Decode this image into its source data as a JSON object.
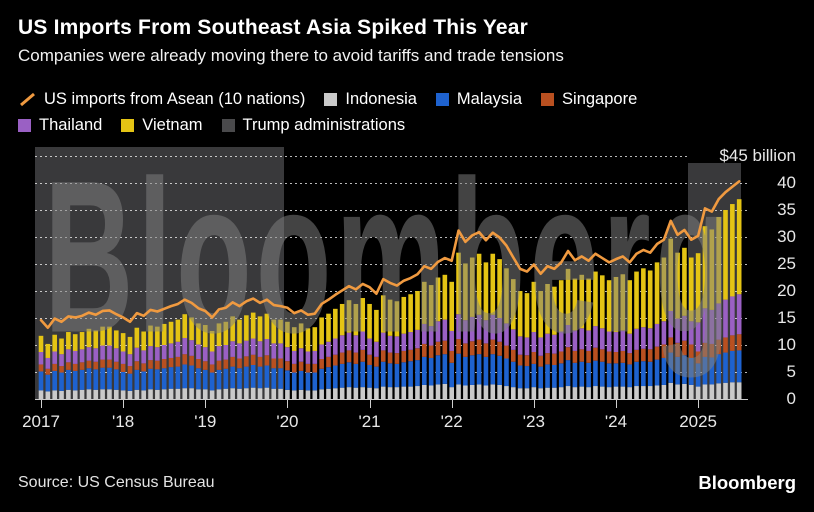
{
  "header": {
    "title": "US Imports From Southeast Asia Spiked This Year",
    "subtitle": "Companies were already moving there to avoid tariffs and trade tensions"
  },
  "legend": {
    "items": [
      {
        "label": "US imports from Asean (10 nations)",
        "type": "line",
        "color": "#F09A40",
        "row": 1
      },
      {
        "label": "Indonesia",
        "type": "square",
        "color": "#CACACA",
        "row": 1
      },
      {
        "label": "Malaysia",
        "type": "square",
        "color": "#1E62CF",
        "row": 1
      },
      {
        "label": "Singapore",
        "type": "square",
        "color": "#B95020",
        "row": 1
      },
      {
        "label": "Thailand",
        "type": "square",
        "color": "#9A60C4",
        "row": 2
      },
      {
        "label": "Vietnam",
        "type": "square",
        "color": "#E4C414",
        "row": 2
      },
      {
        "label": "Trump administrations",
        "type": "square",
        "color": "#4A4A4C",
        "row": 2
      }
    ]
  },
  "y_axis": {
    "unit": "$ billion",
    "ticks": [
      {
        "value": 45,
        "label": "$45 billion"
      },
      {
        "value": 40,
        "label": "40"
      },
      {
        "value": 35,
        "label": "35"
      },
      {
        "value": 30,
        "label": "30"
      },
      {
        "value": 25,
        "label": "25"
      },
      {
        "value": 20,
        "label": "20"
      },
      {
        "value": 15,
        "label": "15"
      },
      {
        "value": 10,
        "label": "10"
      },
      {
        "value": 5,
        "label": "5"
      },
      {
        "value": 0,
        "label": "0"
      }
    ]
  },
  "x_axis": {
    "labels": [
      {
        "text": "2017",
        "month_index": 0
      },
      {
        "text": "'18",
        "month_index": 12
      },
      {
        "text": "'19",
        "month_index": 24
      },
      {
        "text": "'20",
        "month_index": 36
      },
      {
        "text": "'21",
        "month_index": 48
      },
      {
        "text": "'22",
        "month_index": 60
      },
      {
        "text": "'23",
        "month_index": 72
      },
      {
        "text": "'24",
        "month_index": 84
      },
      {
        "text": "2025",
        "month_index": 96
      }
    ]
  },
  "watermark": "Bloomberg",
  "source": "Source: US Census Bureau",
  "branding": "Bloomberg",
  "chart_data": {
    "type": "bar",
    "subtype": "stacked_monthly_bars_with_total_line",
    "unit": "USD billions",
    "start": "2017-01",
    "end": "2025-07",
    "n_months": 103,
    "ylim": [
      0,
      45
    ],
    "grid": true,
    "legend_position": "top",
    "bands": [
      {
        "name": "Trump administrations",
        "start_month": -1,
        "end_month": 36,
        "color": "#39393B"
      },
      {
        "name": "Trump administrations",
        "start_month": 95,
        "end_month": 104,
        "color": "#39393B"
      }
    ],
    "series": [
      {
        "name": "Indonesia",
        "color": "#CACACA",
        "values": [
          1.6,
          1.4,
          1.6,
          1.5,
          1.7,
          1.6,
          1.7,
          1.8,
          1.7,
          1.8,
          1.8,
          1.7,
          1.6,
          1.5,
          1.7,
          1.6,
          1.8,
          1.7,
          1.8,
          1.9,
          1.9,
          2.0,
          2.0,
          1.8,
          1.8,
          1.6,
          1.8,
          1.9,
          2.0,
          1.9,
          2.0,
          2.1,
          2.0,
          2.1,
          1.9,
          1.9,
          1.7,
          1.6,
          1.7,
          1.6,
          1.6,
          1.8,
          1.9,
          2.0,
          2.1,
          2.2,
          2.1,
          2.2,
          2.1,
          2.0,
          2.3,
          2.2,
          2.2,
          2.3,
          2.3,
          2.4,
          2.6,
          2.5,
          2.7,
          2.8,
          2.2,
          2.7,
          2.5,
          2.6,
          2.7,
          2.5,
          2.7,
          2.6,
          2.4,
          2.2,
          2.0,
          2.0,
          2.2,
          2.0,
          2.1,
          2.1,
          2.2,
          2.4,
          2.2,
          2.3,
          2.2,
          2.4,
          2.3,
          2.2,
          2.3,
          2.3,
          2.2,
          2.4,
          2.4,
          2.4,
          2.5,
          2.6,
          3.0,
          2.7,
          2.8,
          2.6,
          2.3,
          2.7,
          2.7,
          2.9,
          3.0,
          3.1,
          3.1
        ]
      },
      {
        "name": "Malaysia",
        "color": "#1E62CF",
        "values": [
          3.5,
          3.1,
          3.6,
          3.4,
          3.7,
          3.6,
          3.7,
          3.9,
          3.8,
          4.0,
          4.0,
          3.8,
          3.4,
          3.2,
          3.7,
          3.5,
          3.8,
          3.8,
          3.9,
          4.0,
          4.1,
          4.4,
          4.2,
          3.9,
          3.6,
          3.3,
          3.6,
          3.7,
          4.0,
          3.8,
          4.0,
          4.2,
          4.0,
          4.1,
          3.8,
          3.8,
          3.6,
          3.3,
          3.5,
          3.3,
          3.3,
          3.8,
          4.0,
          4.2,
          4.4,
          4.6,
          4.4,
          4.7,
          4.2,
          4.0,
          4.6,
          4.4,
          4.3,
          4.5,
          4.7,
          4.8,
          5.2,
          5.1,
          5.4,
          5.5,
          4.5,
          5.7,
          5.3,
          5.5,
          5.6,
          5.3,
          5.6,
          5.4,
          5.1,
          4.7,
          4.2,
          4.1,
          4.3,
          4.0,
          4.3,
          4.2,
          4.4,
          4.8,
          4.5,
          4.6,
          4.5,
          4.7,
          4.6,
          4.4,
          4.3,
          4.4,
          4.2,
          4.5,
          4.6,
          4.5,
          4.8,
          5.0,
          5.6,
          5.1,
          5.3,
          5.0,
          4.3,
          5.1,
          5.0,
          5.4,
          5.6,
          5.8,
          5.9
        ]
      },
      {
        "name": "Singapore",
        "color": "#B95020",
        "values": [
          1.3,
          1.1,
          1.3,
          1.2,
          1.4,
          1.3,
          1.4,
          1.4,
          1.4,
          1.5,
          1.5,
          1.4,
          1.5,
          1.4,
          1.6,
          1.5,
          1.6,
          1.6,
          1.7,
          1.7,
          1.8,
          1.9,
          1.8,
          1.7,
          1.6,
          1.5,
          1.7,
          1.7,
          1.8,
          1.8,
          1.9,
          1.9,
          1.8,
          1.9,
          1.8,
          1.8,
          1.7,
          1.6,
          1.7,
          1.6,
          1.6,
          1.8,
          1.9,
          2.0,
          2.1,
          2.2,
          2.1,
          2.2,
          1.9,
          1.8,
          2.1,
          2.0,
          2.0,
          2.1,
          2.1,
          2.2,
          2.4,
          2.3,
          2.5,
          2.5,
          2.2,
          2.7,
          2.5,
          2.6,
          2.7,
          2.5,
          2.7,
          2.6,
          2.4,
          2.2,
          2.0,
          2.0,
          2.2,
          2.0,
          2.1,
          2.1,
          2.2,
          2.4,
          2.2,
          2.3,
          2.2,
          2.4,
          2.3,
          2.2,
          2.1,
          2.2,
          2.1,
          2.2,
          2.3,
          2.3,
          2.4,
          2.5,
          2.8,
          2.6,
          2.7,
          2.5,
          2.2,
          2.6,
          2.5,
          2.7,
          2.8,
          2.9,
          3.0
        ]
      },
      {
        "name": "Thailand",
        "color": "#9A60C4",
        "values": [
          2.3,
          2.0,
          2.3,
          2.2,
          2.4,
          2.4,
          2.4,
          2.5,
          2.5,
          2.6,
          2.6,
          2.5,
          2.3,
          2.2,
          2.5,
          2.4,
          2.6,
          2.5,
          2.6,
          2.7,
          2.8,
          3.0,
          2.9,
          2.7,
          2.6,
          2.4,
          2.7,
          2.7,
          2.9,
          2.8,
          2.9,
          3.0,
          2.9,
          3.0,
          2.8,
          2.8,
          2.6,
          2.4,
          2.5,
          2.3,
          2.4,
          2.7,
          2.8,
          3.0,
          3.2,
          3.3,
          3.2,
          3.4,
          3.0,
          2.8,
          3.3,
          3.1,
          3.1,
          3.2,
          3.3,
          3.4,
          3.7,
          3.6,
          3.8,
          3.9,
          3.7,
          4.6,
          4.3,
          4.5,
          4.6,
          4.3,
          4.6,
          4.4,
          4.1,
          3.8,
          3.4,
          3.3,
          3.7,
          3.4,
          3.6,
          3.5,
          3.7,
          4.1,
          3.8,
          3.9,
          3.8,
          4.0,
          3.9,
          3.7,
          3.7,
          3.8,
          3.6,
          3.9,
          4.0,
          3.9,
          4.2,
          4.3,
          4.9,
          4.5,
          4.6,
          4.3,
          5.4,
          6.4,
          6.3,
          6.7,
          7.0,
          7.2,
          7.4
        ]
      },
      {
        "name": "Vietnam",
        "color": "#E4C414",
        "values": [
          3.0,
          2.6,
          3.1,
          2.9,
          3.2,
          3.1,
          3.2,
          3.4,
          3.3,
          3.5,
          3.5,
          3.3,
          3.4,
          3.2,
          3.7,
          3.5,
          3.8,
          3.8,
          3.9,
          4.0,
          4.1,
          4.4,
          4.2,
          3.9,
          4.1,
          3.8,
          4.2,
          4.3,
          4.6,
          4.4,
          4.7,
          4.8,
          4.6,
          4.7,
          4.4,
          4.4,
          4.7,
          4.4,
          4.6,
          4.3,
          4.4,
          5.0,
          5.2,
          5.5,
          5.8,
          6.0,
          5.8,
          6.2,
          6.4,
          5.9,
          6.9,
          6.7,
          6.5,
          6.8,
          7.0,
          7.2,
          7.8,
          7.6,
          8.1,
          8.3,
          9.1,
          11.4,
          10.5,
          11.0,
          11.3,
          10.7,
          11.3,
          10.9,
          10.2,
          9.3,
          8.4,
          8.2,
          9.3,
          8.6,
          9.2,
          8.9,
          9.5,
          10.4,
          9.6,
          9.9,
          9.6,
          10.1,
          9.8,
          9.5,
          10.2,
          10.4,
          9.9,
          10.6,
          10.9,
          10.7,
          11.4,
          11.8,
          13.4,
          12.2,
          12.6,
          11.8,
          12.8,
          15.2,
          14.9,
          16.0,
          16.6,
          17.1,
          17.6
        ]
      }
    ],
    "line": {
      "name": "US imports from Asean (10 nations)",
      "color": "#F09A40",
      "values": [
        14.6,
        13.2,
        14.9,
        14.3,
        15.3,
        15.1,
        15.4,
        16.0,
        15.6,
        16.3,
        16.4,
        15.7,
        15.1,
        14.3,
        15.9,
        15.4,
        16.5,
        16.2,
        16.7,
        17.2,
        17.6,
        18.4,
        17.8,
        16.8,
        16.3,
        15.1,
        16.6,
        16.9,
        17.9,
        17.2,
        18.1,
        18.6,
        17.8,
        18.4,
        17.4,
        17.2,
        16.9,
        15.9,
        16.4,
        15.6,
        15.8,
        17.6,
        18.4,
        19.3,
        20.1,
        20.9,
        20.3,
        21.3,
        20.7,
        19.5,
        22.2,
        21.5,
        21.0,
        21.9,
        22.4,
        23.1,
        24.6,
        24.1,
        25.4,
        26.1,
        25.6,
        31.2,
        29.1,
        30.3,
        30.9,
        29.4,
        30.8,
        29.9,
        28.4,
        26.2,
        24.1,
        23.6,
        24.9,
        23.2,
        24.6,
        24.1,
        25.3,
        27.4,
        25.7,
        26.4,
        25.6,
        26.9,
        26.1,
        25.3,
        25.9,
        26.4,
        25.3,
        26.9,
        27.6,
        27.1,
        28.7,
        29.5,
        33.0,
        30.4,
        31.3,
        29.5,
        30.2,
        35.3,
        34.7,
        37.0,
        38.3,
        39.3,
        40.3
      ]
    }
  }
}
